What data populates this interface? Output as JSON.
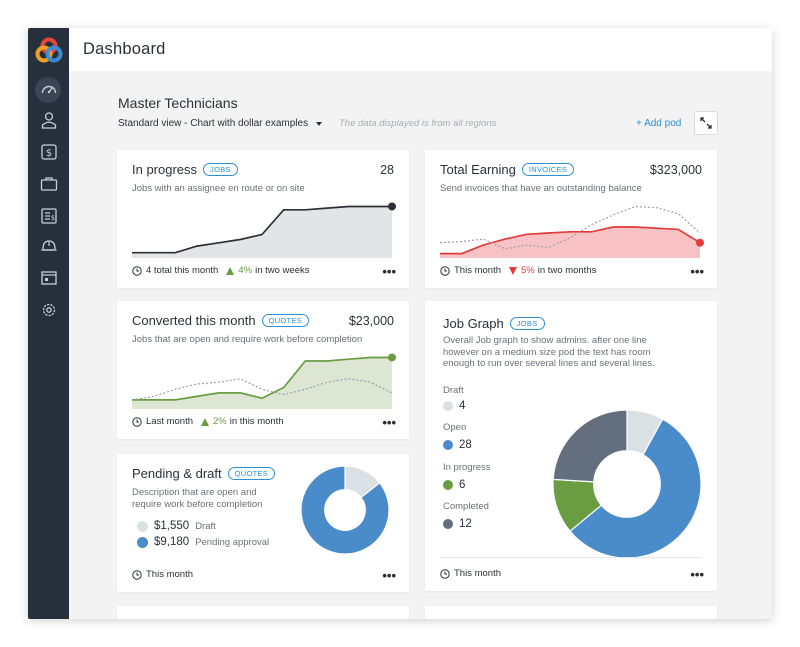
{
  "app": {
    "title": "Dashboard"
  },
  "sidebar": {
    "items": [
      {
        "icon": "speedometer-icon",
        "active": true
      },
      {
        "icon": "technician-icon"
      },
      {
        "icon": "invoice-dollar-icon"
      },
      {
        "icon": "briefcase-icon"
      },
      {
        "icon": "receipt-icon"
      },
      {
        "icon": "hard-hat-icon"
      },
      {
        "icon": "building-icon"
      },
      {
        "icon": "gear-icon"
      }
    ]
  },
  "header": {
    "section_title": "Master Technicians",
    "view_label": "Standard view - Chart with dollar examples",
    "view_note": "The data displayed is from all regions",
    "add_pod": "+ Add pod"
  },
  "colors": {
    "accent_blue": "#2d8fd5",
    "green": "#6a9c42",
    "red": "#e13b3b",
    "sidebar": "#26303d",
    "donut_blue": "#4a8bc9",
    "donut_gray": "#d9e1e5",
    "donut_green": "#6a9c42",
    "donut_slate": "#636f7e"
  },
  "cards": {
    "in_progress": {
      "title": "In progress",
      "badge": "JOBS",
      "value": "28",
      "desc": "Jobs with an assignee en route or on site",
      "foot_count": "4 total this month",
      "pct": "4%",
      "foot_tail": "in two weeks"
    },
    "total_earning": {
      "title": "Total Earning",
      "badge": "INVOICES",
      "value": "$323,000",
      "desc": "Send invoices that have an outstanding balance",
      "foot_period": "This month",
      "pct": "5%",
      "foot_tail": "in two months"
    },
    "converted": {
      "title": "Converted this month",
      "badge": "QUOTES",
      "value": "$23,000",
      "desc": "Jobs that are open and require work before completion",
      "foot_period": "Last month",
      "pct": "2%",
      "foot_tail": "in this month"
    },
    "pending": {
      "title": "Pending & draft",
      "badge": "QUOTES",
      "desc_line1": "Description that are open and",
      "desc_line2": "require work before completion",
      "items": [
        {
          "amount": "$1,550",
          "label": "Draft",
          "color": "#d9e1e5"
        },
        {
          "amount": "$9,180",
          "label": "Pending approval",
          "color": "#4a8bc9"
        }
      ],
      "foot_period": "This month"
    },
    "job_graph": {
      "title": "Job Graph",
      "badge": "JOBS",
      "desc_line1": "Overall Job graph to show admins. after one line",
      "desc_line2": "however on a medium size pod the text has room",
      "desc_line3": "enough to run over several lines and several lines.",
      "items": [
        {
          "label": "Draft",
          "value": "4",
          "color": "#d9e1e5"
        },
        {
          "label": "Open",
          "value": "28",
          "color": "#4a8bc9"
        },
        {
          "label": "In progress",
          "value": "6",
          "color": "#6a9c42"
        },
        {
          "label": "Completed",
          "value": "12",
          "color": "#636f7e"
        }
      ],
      "foot_period": "This month"
    }
  },
  "chart_data": [
    {
      "type": "area",
      "x": [
        1,
        2,
        3,
        4,
        5,
        6,
        7,
        8,
        9,
        10,
        11,
        12,
        13
      ],
      "series": [
        {
          "values": [
            2,
            2,
            2,
            6,
            8,
            10,
            13,
            28,
            28,
            29,
            30,
            30,
            30
          ]
        }
      ]
    },
    {
      "type": "area",
      "x": [
        1,
        2,
        3,
        4,
        5,
        6,
        7,
        8,
        9,
        10,
        11,
        12,
        13
      ],
      "series": [
        {
          "values": [
            2,
            2,
            9,
            14,
            18,
            19,
            20,
            20,
            24,
            24,
            23,
            22,
            11
          ]
        },
        {
          "values": [
            11,
            12,
            14,
            6,
            9,
            7,
            15,
            26,
            34,
            41,
            40,
            35,
            19
          ]
        }
      ]
    },
    {
      "type": "area",
      "x": [
        1,
        2,
        3,
        4,
        5,
        6,
        7,
        8,
        9,
        10,
        11,
        12,
        13
      ],
      "series": [
        {
          "values": [
            4,
            4,
            4,
            6,
            8,
            8,
            5,
            11,
            26,
            26,
            27,
            28,
            28
          ]
        },
        {
          "values": [
            4,
            6,
            10,
            13,
            14,
            16,
            10,
            7,
            10,
            14,
            16,
            14,
            8
          ]
        }
      ]
    },
    {
      "type": "pie",
      "categories": [
        "Draft",
        "Pending approval"
      ],
      "values": [
        1550,
        9180
      ]
    },
    {
      "type": "pie",
      "categories": [
        "Draft",
        "Open",
        "In progress",
        "Completed"
      ],
      "values": [
        4,
        28,
        6,
        12
      ]
    }
  ]
}
